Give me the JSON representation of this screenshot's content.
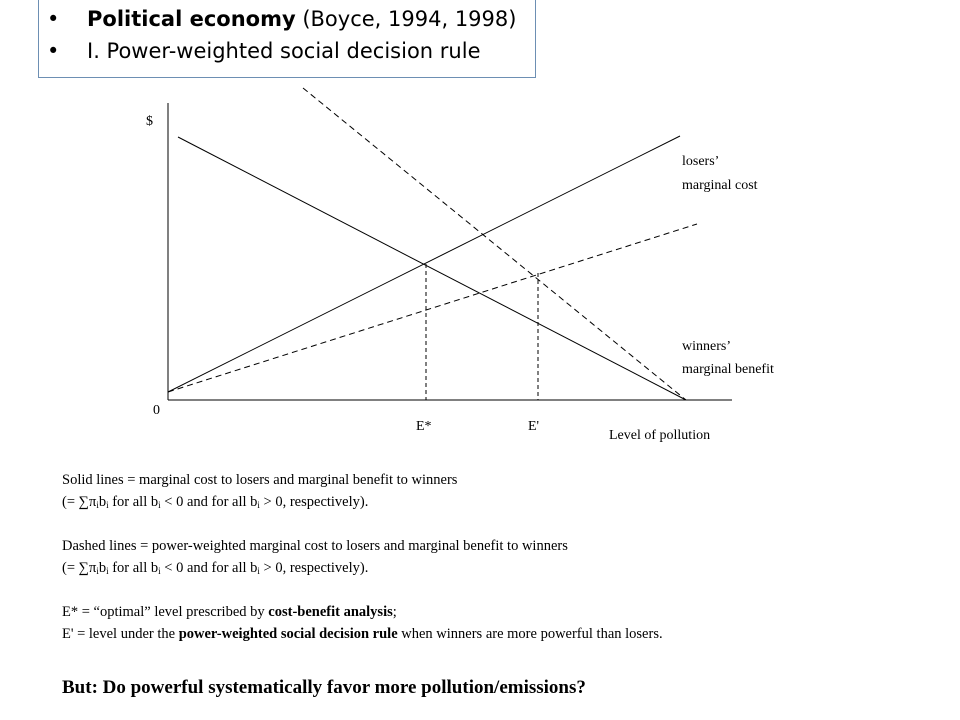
{
  "header": {
    "bullets": [
      {
        "bold": "Political economy",
        "rest": " (Boyce, 1994, 1998)"
      },
      {
        "bold": "",
        "rest": "I. Power-weighted social decision rule"
      }
    ],
    "bullet_glyph": "•",
    "border_color": "#6d8fb3"
  },
  "diagram": {
    "y_axis_label": "$",
    "origin_label": "0",
    "x_axis_label": "Level of pollution",
    "e_star_label": "E*",
    "e_prime_label": "E'",
    "losers_label_line1": "losers’",
    "losers_label_line2": "marginal cost",
    "winners_label_line1": "winners’",
    "winners_label_line2": "marginal benefit"
  },
  "caption": {
    "line1": "Solid lines = marginal cost to losers and marginal benefit to winners",
    "line2_a": "(= ",
    "line2_sigma": "∑π",
    "line2_sub_i": "i",
    "line2_b": "b",
    "line2_sub_i2": "i",
    "line2_c": " for all b",
    "line2_sub_i3": "i",
    "line2_d": " < 0 and for all b",
    "line2_sub_i4": "i",
    "line2_e": " > 0, respectively).",
    "line3": "Dashed lines = power-weighted marginal cost to losers and marginal benefit to winners",
    "line4_a": "(= ",
    "line4_sigma": "∑π",
    "line4_sub_i": "i",
    "line4_b": "b",
    "line4_sub_i2": "i",
    "line4_c": " for all b",
    "line4_sub_i3": "i",
    "line4_d": " < 0 and for all b",
    "line4_sub_i4": "i",
    "line4_e": " > 0, respectively).",
    "line5_a": "E* = “optimal” level prescribed by ",
    "line5_bold": "cost-benefit analysis",
    "line5_b": ";",
    "line6_a": "E' = level under the ",
    "line6_bold": "power-weighted social decision rule",
    "line6_b": " when winners are more powerful than losers."
  },
  "conclusion": "But: Do powerful systematically favor more pollution/emissions?"
}
